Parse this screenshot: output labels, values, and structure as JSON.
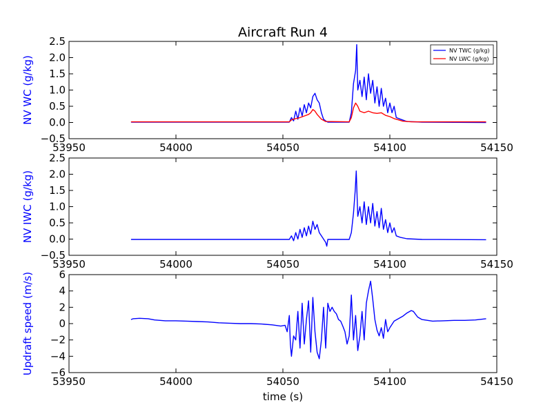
{
  "chart_data": [
    {
      "type": "line",
      "title": "Aircraft Run 4",
      "xlabel": "",
      "ylabel": "NV WC (g/kg)",
      "xlim": [
        53950,
        54150
      ],
      "ylim": [
        -0.5,
        2.5
      ],
      "xticks": [
        "53950",
        "54000",
        "54050",
        "54100",
        "54150"
      ],
      "yticks": [
        "−0.5",
        "0.0",
        "0.5",
        "1.0",
        "1.5",
        "2.0",
        "2.5"
      ],
      "legend": "top-right",
      "series": [
        {
          "name": "NV TWC (g/kg)",
          "color": "#0000ff",
          "points": [
            [
              53979,
              0.01
            ],
            [
              54000,
              0.01
            ],
            [
              54030,
              0.01
            ],
            [
              54053,
              0.01
            ],
            [
              54054,
              0.15
            ],
            [
              54055,
              0.05
            ],
            [
              54056,
              0.35
            ],
            [
              54057,
              0.1
            ],
            [
              54058,
              0.45
            ],
            [
              54059,
              0.2
            ],
            [
              54060,
              0.55
            ],
            [
              54061,
              0.3
            ],
            [
              54062,
              0.6
            ],
            [
              54063,
              0.45
            ],
            [
              54064,
              0.8
            ],
            [
              54065,
              0.9
            ],
            [
              54066,
              0.7
            ],
            [
              54067,
              0.6
            ],
            [
              54068,
              0.3
            ],
            [
              54069,
              0.1
            ],
            [
              54070,
              0.05
            ],
            [
              54071,
              0.01
            ],
            [
              54081,
              0.01
            ],
            [
              54082,
              0.3
            ],
            [
              54083,
              1.2
            ],
            [
              54084,
              1.6
            ],
            [
              54084.5,
              2.4
            ],
            [
              54085,
              1.0
            ],
            [
              54086,
              1.3
            ],
            [
              54087,
              0.8
            ],
            [
              54088,
              1.4
            ],
            [
              54089,
              0.7
            ],
            [
              54090,
              1.5
            ],
            [
              54091,
              0.9
            ],
            [
              54092,
              1.3
            ],
            [
              54093,
              0.6
            ],
            [
              54094,
              1.1
            ],
            [
              54095,
              0.5
            ],
            [
              54096,
              1.05
            ],
            [
              54097,
              0.5
            ],
            [
              54098,
              0.75
            ],
            [
              54099,
              0.3
            ],
            [
              54100,
              0.6
            ],
            [
              54101,
              0.3
            ],
            [
              54102,
              0.5
            ],
            [
              54103,
              0.15
            ],
            [
              54105,
              0.1
            ],
            [
              54108,
              0.03
            ],
            [
              54115,
              0.01
            ],
            [
              54145,
              0.0
            ]
          ]
        },
        {
          "name": "NV LWC (g/kg)",
          "color": "#ff0000",
          "points": [
            [
              53979,
              0.02
            ],
            [
              54000,
              0.02
            ],
            [
              54030,
              0.02
            ],
            [
              54053,
              0.02
            ],
            [
              54054,
              0.08
            ],
            [
              54056,
              0.12
            ],
            [
              54058,
              0.15
            ],
            [
              54060,
              0.2
            ],
            [
              54062,
              0.25
            ],
            [
              54063,
              0.3
            ],
            [
              54064,
              0.4
            ],
            [
              54065,
              0.35
            ],
            [
              54066,
              0.25
            ],
            [
              54068,
              0.1
            ],
            [
              54070,
              0.03
            ],
            [
              54081,
              0.02
            ],
            [
              54082,
              0.15
            ],
            [
              54083,
              0.45
            ],
            [
              54084,
              0.6
            ],
            [
              54085,
              0.5
            ],
            [
              54086,
              0.35
            ],
            [
              54088,
              0.3
            ],
            [
              54090,
              0.35
            ],
            [
              54092,
              0.3
            ],
            [
              54094,
              0.28
            ],
            [
              54096,
              0.3
            ],
            [
              54098,
              0.22
            ],
            [
              54100,
              0.18
            ],
            [
              54102,
              0.12
            ],
            [
              54104,
              0.08
            ],
            [
              54106,
              0.04
            ],
            [
              54110,
              0.02
            ],
            [
              54145,
              0.02
            ]
          ]
        }
      ]
    },
    {
      "type": "line",
      "title": "",
      "xlabel": "",
      "ylabel": "NV IWC (g/kg)",
      "xlim": [
        53950,
        54150
      ],
      "ylim": [
        -0.5,
        2.5
      ],
      "xticks": [
        "53950",
        "54000",
        "54050",
        "54100",
        "54150"
      ],
      "yticks": [
        "−0.5",
        "0.0",
        "0.5",
        "1.0",
        "1.5",
        "2.0",
        "2.5"
      ],
      "series": [
        {
          "color": "#0000ff",
          "points": [
            [
              53979,
              -0.01
            ],
            [
              54000,
              -0.01
            ],
            [
              54030,
              -0.01
            ],
            [
              54053,
              -0.01
            ],
            [
              54054,
              0.1
            ],
            [
              54055,
              -0.05
            ],
            [
              54056,
              0.2
            ],
            [
              54057,
              0.0
            ],
            [
              54058,
              0.3
            ],
            [
              54059,
              0.05
            ],
            [
              54060,
              0.35
            ],
            [
              54061,
              0.1
            ],
            [
              54062,
              0.4
            ],
            [
              54063,
              0.15
            ],
            [
              54064,
              0.55
            ],
            [
              54065,
              0.3
            ],
            [
              54066,
              0.45
            ],
            [
              54067,
              0.2
            ],
            [
              54068,
              0.1
            ],
            [
              54069,
              0.0
            ],
            [
              54070,
              -0.1
            ],
            [
              54070.5,
              -0.22
            ],
            [
              54071,
              -0.01
            ],
            [
              54081,
              -0.01
            ],
            [
              54082,
              0.2
            ],
            [
              54083,
              0.8
            ],
            [
              54083.8,
              1.5
            ],
            [
              54084.3,
              2.1
            ],
            [
              54085,
              0.7
            ],
            [
              54086,
              1.0
            ],
            [
              54087,
              0.5
            ],
            [
              54088,
              1.15
            ],
            [
              54089,
              0.45
            ],
            [
              54090,
              1.0
            ],
            [
              54091,
              0.5
            ],
            [
              54092,
              1.1
            ],
            [
              54093,
              0.4
            ],
            [
              54094,
              0.85
            ],
            [
              54095,
              0.35
            ],
            [
              54096,
              0.95
            ],
            [
              54097,
              0.3
            ],
            [
              54098,
              0.6
            ],
            [
              54099,
              0.2
            ],
            [
              54100,
              0.5
            ],
            [
              54101,
              0.2
            ],
            [
              54102,
              0.35
            ],
            [
              54103,
              0.1
            ],
            [
              54105,
              0.05
            ],
            [
              54108,
              0.01
            ],
            [
              54115,
              -0.01
            ],
            [
              54145,
              -0.02
            ]
          ]
        }
      ]
    },
    {
      "type": "line",
      "title": "",
      "xlabel": "time (s)",
      "ylabel": "Updraft speed (m/s)",
      "xlim": [
        53950,
        54150
      ],
      "ylim": [
        -6,
        6
      ],
      "xticks": [
        "53950",
        "54000",
        "54050",
        "54100",
        "54150"
      ],
      "yticks": [
        "−6",
        "−4",
        "−2",
        "0",
        "2",
        "4",
        "6"
      ],
      "series": [
        {
          "color": "#0000ff",
          "points": [
            [
              53979,
              0.5
            ],
            [
              53980,
              0.6
            ],
            [
              53983,
              0.65
            ],
            [
              53987,
              0.6
            ],
            [
              53990,
              0.45
            ],
            [
              53995,
              0.35
            ],
            [
              54000,
              0.35
            ],
            [
              54005,
              0.3
            ],
            [
              54010,
              0.25
            ],
            [
              54015,
              0.2
            ],
            [
              54020,
              0.1
            ],
            [
              54025,
              0.05
            ],
            [
              54030,
              0.0
            ],
            [
              54035,
              0.0
            ],
            [
              54040,
              -0.05
            ],
            [
              54045,
              -0.15
            ],
            [
              54049,
              -0.3
            ],
            [
              54051,
              -0.2
            ],
            [
              54052,
              -1.0
            ],
            [
              54053,
              1.0
            ],
            [
              54053.5,
              -2.5
            ],
            [
              54054,
              -4.0
            ],
            [
              54055,
              -1.5
            ],
            [
              54056,
              -2.0
            ],
            [
              54057,
              1.5
            ],
            [
              54058,
              -3.0
            ],
            [
              54059,
              2.5
            ],
            [
              54060,
              -2.5
            ],
            [
              54061,
              0.5
            ],
            [
              54062,
              2.8
            ],
            [
              54063,
              -3.5
            ],
            [
              54064,
              3.2
            ],
            [
              54065,
              -1.0
            ],
            [
              54066,
              -3.5
            ],
            [
              54067,
              -4.3
            ],
            [
              54068,
              -2.0
            ],
            [
              54069,
              2.0
            ],
            [
              54070,
              -3.0
            ],
            [
              54071,
              2.5
            ],
            [
              54072,
              1.5
            ],
            [
              54073,
              2.0
            ],
            [
              54074,
              1.5
            ],
            [
              54075,
              1.2
            ],
            [
              54076,
              0.5
            ],
            [
              54077,
              0.3
            ],
            [
              54078,
              -0.3
            ],
            [
              54079,
              -1.0
            ],
            [
              54080,
              -2.5
            ],
            [
              54081,
              -1.5
            ],
            [
              54082,
              3.5
            ],
            [
              54083,
              -2.0
            ],
            [
              54084,
              1.0
            ],
            [
              54085,
              -3.3
            ],
            [
              54086,
              -1.5
            ],
            [
              54087,
              1.5
            ],
            [
              54088,
              -2.0
            ],
            [
              54089,
              2.5
            ],
            [
              54090,
              4.0
            ],
            [
              54091,
              5.2
            ],
            [
              54092,
              3.0
            ],
            [
              54093,
              0.5
            ],
            [
              54094,
              -0.8
            ],
            [
              54095,
              -1.5
            ],
            [
              54096,
              -0.5
            ],
            [
              54097,
              -1.8
            ],
            [
              54098,
              0.5
            ],
            [
              54099,
              -1.0
            ],
            [
              54100,
              -0.5
            ],
            [
              54102,
              0.3
            ],
            [
              54104,
              0.6
            ],
            [
              54106,
              0.9
            ],
            [
              54108,
              1.3
            ],
            [
              54110,
              1.6
            ],
            [
              54111,
              1.5
            ],
            [
              54113,
              0.8
            ],
            [
              54115,
              0.5
            ],
            [
              54120,
              0.3
            ],
            [
              54125,
              0.35
            ],
            [
              54130,
              0.4
            ],
            [
              54135,
              0.4
            ],
            [
              54140,
              0.45
            ],
            [
              54145,
              0.6
            ]
          ]
        }
      ]
    }
  ]
}
